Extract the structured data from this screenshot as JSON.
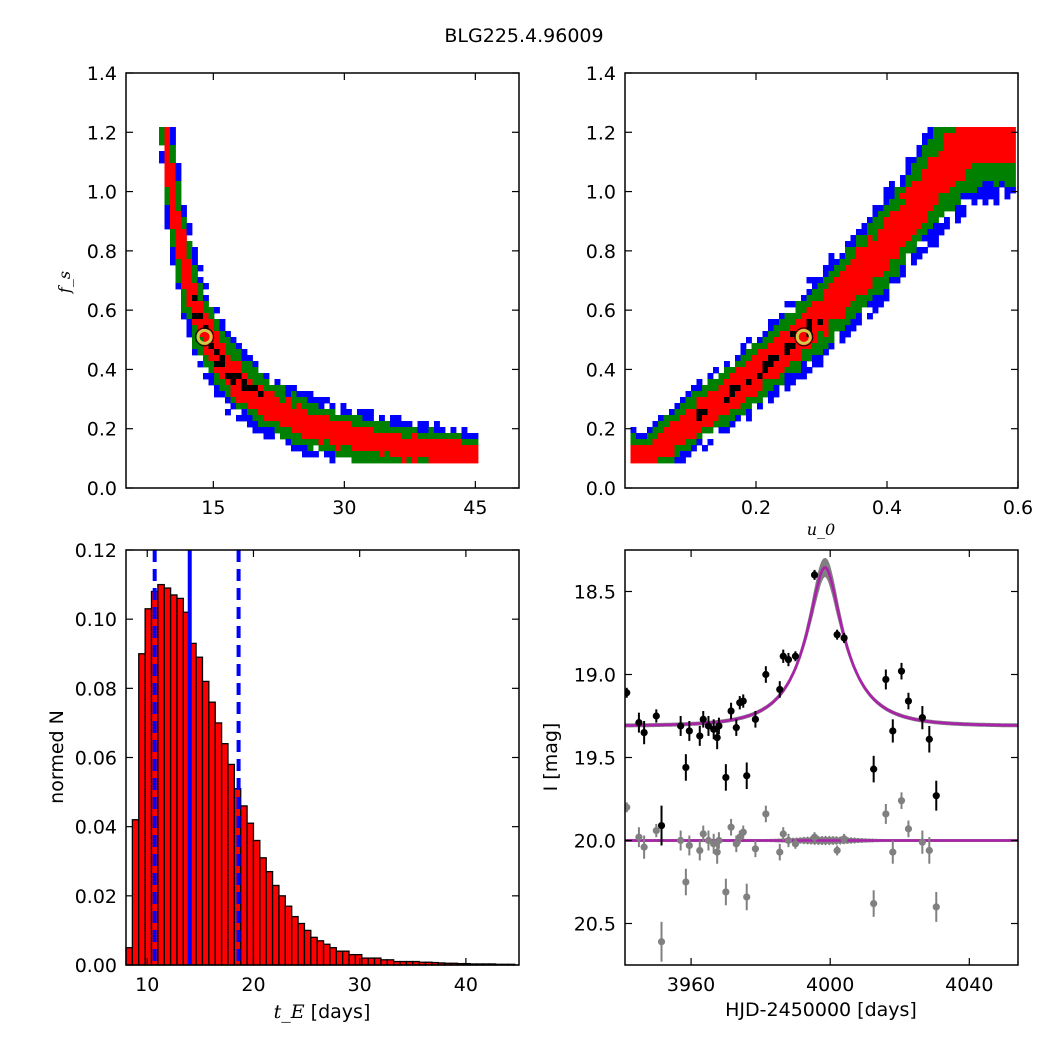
{
  "figure": {
    "title": "BLG225.4.96009"
  },
  "colors": {
    "outer_contour": "#0000ff",
    "middle_contour": "#008000",
    "inner_contour": "#ff0000",
    "best_samples": "#000000",
    "best_fit_marker": "#d4c84a",
    "hist_bar": "#ff0000",
    "hist_lines": "#0000ff",
    "data_points": "#000000",
    "residual_points": "#808080",
    "model_curve": "#aa22aa",
    "model_band": "#808080"
  },
  "chart_data": [
    {
      "id": "tE-fs",
      "type": "heatmap",
      "title": "",
      "xlabel": "",
      "ylabel": "f_s",
      "xlim": [
        5,
        50
      ],
      "ylim": [
        0.0,
        1.4
      ],
      "xticks": [
        15,
        30,
        45
      ],
      "yticks": [
        0.0,
        0.2,
        0.4,
        0.6,
        0.8,
        1.0,
        1.2,
        1.4
      ],
      "contour_levels": [
        "outer",
        "middle",
        "inner",
        "core"
      ],
      "ridge": "fs * (tE - 6.0) = 4.3",
      "ridge_x_range": [
        8.2,
        45.0
      ],
      "best_fit": {
        "x": 14.0,
        "y": 0.51
      }
    },
    {
      "id": "u0-fs",
      "type": "heatmap",
      "title": "",
      "xlabel": "u_0",
      "ylabel": "",
      "xlim": [
        0.0,
        0.6
      ],
      "ylim": [
        0.0,
        1.4
      ],
      "xticks": [
        0.2,
        0.4,
        0.6
      ],
      "yticks": [
        0.0,
        0.2,
        0.4,
        0.6,
        0.8,
        1.0,
        1.2,
        1.4
      ],
      "ridge_points": [
        [
          0.03,
          0.1
        ],
        [
          0.1,
          0.22
        ],
        [
          0.2,
          0.38
        ],
        [
          0.3,
          0.58
        ],
        [
          0.4,
          0.82
        ],
        [
          0.5,
          1.12
        ],
        [
          0.55,
          1.2
        ]
      ],
      "best_fit": {
        "x": 0.273,
        "y": 0.51
      }
    },
    {
      "id": "tE-hist",
      "type": "bar",
      "title": "",
      "xlabel": "t_E",
      "xlabel_suffix": " [days]",
      "ylabel": "normed N",
      "xlim": [
        8.0,
        45.0
      ],
      "ylim": [
        0.0,
        0.12
      ],
      "xticks": [
        10,
        20,
        30,
        40
      ],
      "yticks": [
        0.0,
        0.02,
        0.04,
        0.06,
        0.08,
        0.1,
        0.12
      ],
      "bin_start": 8.0,
      "bin_width": 0.6,
      "values": [
        0.005,
        0.042,
        0.09,
        0.103,
        0.108,
        0.11,
        0.109,
        0.107,
        0.106,
        0.102,
        0.093,
        0.089,
        0.082,
        0.076,
        0.07,
        0.064,
        0.058,
        0.051,
        0.046,
        0.041,
        0.036,
        0.031,
        0.027,
        0.023,
        0.02,
        0.017,
        0.014,
        0.012,
        0.01,
        0.008,
        0.007,
        0.006,
        0.005,
        0.004,
        0.004,
        0.003,
        0.003,
        0.002,
        0.002,
        0.002,
        0.0015,
        0.0015,
        0.001,
        0.001,
        0.001,
        0.001,
        0.0008,
        0.0008,
        0.0007,
        0.0006,
        0.0005,
        0.0005,
        0.0004,
        0.0004,
        0.0003,
        0.0003,
        0.0003,
        0.0003,
        0.0002,
        0.0002,
        0.0002
      ],
      "vlines": [
        {
          "x": 10.7,
          "style": "dashed"
        },
        {
          "x": 14.0,
          "style": "solid"
        },
        {
          "x": 18.6,
          "style": "dashed"
        }
      ]
    },
    {
      "id": "lightcurve",
      "type": "scatter",
      "title": "",
      "xlabel": "HJD-2450000 [days]",
      "ylabel": "I [mag]",
      "xlim": [
        3941,
        4054
      ],
      "ylim": [
        20.75,
        18.25
      ],
      "y_inverted": true,
      "xticks": [
        3960,
        4000,
        4040
      ],
      "yticks": [
        18.5,
        19.0,
        19.5,
        20.0,
        20.5
      ],
      "model": {
        "t0": 3998.5,
        "tE": 14.0,
        "u0": 0.273,
        "fs": 0.51,
        "baseline": 19.31
      },
      "residual_offset": 20.0,
      "series": [
        {
          "role": "data",
          "points": [
            [
              3941.5,
              19.11,
              0.03
            ],
            [
              3945.0,
              19.29,
              0.06
            ],
            [
              3946.5,
              19.35,
              0.07
            ],
            [
              3950.0,
              19.25,
              0.04
            ],
            [
              3951.5,
              19.91,
              0.12
            ],
            [
              3957.0,
              19.31,
              0.06
            ],
            [
              3958.5,
              19.56,
              0.08
            ],
            [
              3959.5,
              19.34,
              0.06
            ],
            [
              3962.5,
              19.37,
              0.06
            ],
            [
              3963.5,
              19.27,
              0.05
            ],
            [
              3965.0,
              19.31,
              0.06
            ],
            [
              3966.5,
              19.33,
              0.06
            ],
            [
              3967.5,
              19.38,
              0.07
            ],
            [
              3968.0,
              19.31,
              0.05
            ],
            [
              3970.0,
              19.62,
              0.08
            ],
            [
              3971.5,
              19.22,
              0.05
            ],
            [
              3973.0,
              19.32,
              0.05
            ],
            [
              3974.0,
              19.17,
              0.04
            ],
            [
              3975.0,
              19.16,
              0.04
            ],
            [
              3976.0,
              19.61,
              0.08
            ],
            [
              3978.5,
              19.27,
              0.05
            ],
            [
              3981.5,
              19.0,
              0.05
            ],
            [
              3985.5,
              19.09,
              0.05
            ],
            [
              3986.5,
              18.89,
              0.04
            ],
            [
              3988.0,
              18.91,
              0.04
            ],
            [
              3990.0,
              18.89,
              0.03
            ],
            [
              3995.5,
              18.4,
              0.03
            ],
            [
              4002.0,
              18.76,
              0.03
            ],
            [
              4004.0,
              18.78,
              0.03
            ],
            [
              4012.5,
              19.57,
              0.08
            ],
            [
              4016.0,
              19.03,
              0.06
            ],
            [
              4018.0,
              19.34,
              0.07
            ],
            [
              4020.5,
              18.98,
              0.05
            ],
            [
              4022.5,
              19.16,
              0.05
            ],
            [
              4026.5,
              19.26,
              0.07
            ],
            [
              4028.5,
              19.39,
              0.08
            ],
            [
              4030.5,
              19.73,
              0.09
            ]
          ]
        },
        {
          "role": "residuals",
          "points": [
            [
              3941.5,
              19.8,
              0.03
            ],
            [
              3945.0,
              19.98,
              0.06
            ],
            [
              3946.5,
              20.04,
              0.07
            ],
            [
              3950.0,
              19.94,
              0.04
            ],
            [
              3951.5,
              20.61,
              0.12
            ],
            [
              3957.0,
              20.0,
              0.06
            ],
            [
              3958.5,
              20.25,
              0.08
            ],
            [
              3959.5,
              20.03,
              0.06
            ],
            [
              3962.5,
              20.06,
              0.06
            ],
            [
              3963.5,
              19.96,
              0.05
            ],
            [
              3965.0,
              20.0,
              0.06
            ],
            [
              3966.5,
              20.02,
              0.06
            ],
            [
              3967.5,
              20.07,
              0.07
            ],
            [
              3968.0,
              20.0,
              0.05
            ],
            [
              3970.0,
              20.31,
              0.08
            ],
            [
              3971.5,
              19.92,
              0.05
            ],
            [
              3973.0,
              20.02,
              0.05
            ],
            [
              3974.0,
              19.98,
              0.04
            ],
            [
              3975.0,
              19.95,
              0.04
            ],
            [
              3976.0,
              20.34,
              0.08
            ],
            [
              3978.5,
              20.05,
              0.05
            ],
            [
              3981.5,
              19.84,
              0.05
            ],
            [
              3985.5,
              20.07,
              0.05
            ],
            [
              3986.5,
              19.96,
              0.04
            ],
            [
              3988.0,
              20.0,
              0.04
            ],
            [
              3990.0,
              20.02,
              0.03
            ],
            [
              3995.5,
              19.98,
              0.03
            ],
            [
              4002.0,
              20.06,
              0.03
            ],
            [
              4004.0,
              19.99,
              0.03
            ],
            [
              4012.5,
              20.38,
              0.08
            ],
            [
              4016.0,
              19.84,
              0.06
            ],
            [
              4018.0,
              20.07,
              0.07
            ],
            [
              4020.5,
              19.76,
              0.05
            ],
            [
              4022.5,
              19.93,
              0.05
            ],
            [
              4026.5,
              20.01,
              0.07
            ],
            [
              4028.5,
              20.06,
              0.08
            ],
            [
              4030.5,
              20.4,
              0.09
            ]
          ]
        }
      ]
    }
  ]
}
